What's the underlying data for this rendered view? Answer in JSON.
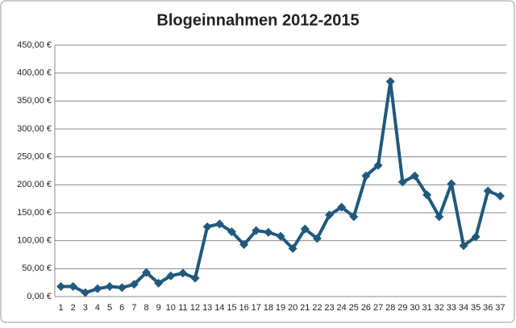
{
  "chart_data": {
    "type": "line",
    "title": "Blogeinnahmen 2012-2015",
    "categories": [
      "1",
      "2",
      "3",
      "4",
      "5",
      "6",
      "7",
      "8",
      "9",
      "10",
      "11",
      "12",
      "13",
      "14",
      "15",
      "16",
      "17",
      "18",
      "19",
      "20",
      "21",
      "22",
      "23",
      "24",
      "25",
      "26",
      "27",
      "28",
      "29",
      "30",
      "31",
      "32",
      "33",
      "34",
      "35",
      "36",
      "37"
    ],
    "values": [
      18,
      18,
      7,
      14,
      18,
      16,
      22,
      43,
      24,
      37,
      42,
      33,
      125,
      130,
      116,
      93,
      118,
      115,
      108,
      86,
      121,
      104,
      146,
      160,
      143,
      216,
      235,
      385,
      205,
      216,
      182,
      143,
      202,
      91,
      107,
      189,
      180
    ],
    "color": "#21597d",
    "ylim": [
      0,
      450
    ],
    "yticks": [
      {
        "value": 0,
        "label": "0,00 €"
      },
      {
        "value": 50,
        "label": "50,00 €"
      },
      {
        "value": 100,
        "label": "100,00 €"
      },
      {
        "value": 150,
        "label": "150,00 €"
      },
      {
        "value": 200,
        "label": "200,00 €"
      },
      {
        "value": 250,
        "label": "250,00 €"
      },
      {
        "value": 300,
        "label": "300,00 €"
      },
      {
        "value": 350,
        "label": "350,00 €"
      },
      {
        "value": 400,
        "label": "400,00 €"
      },
      {
        "value": 450,
        "label": "450,00 €"
      }
    ],
    "grid": true
  }
}
